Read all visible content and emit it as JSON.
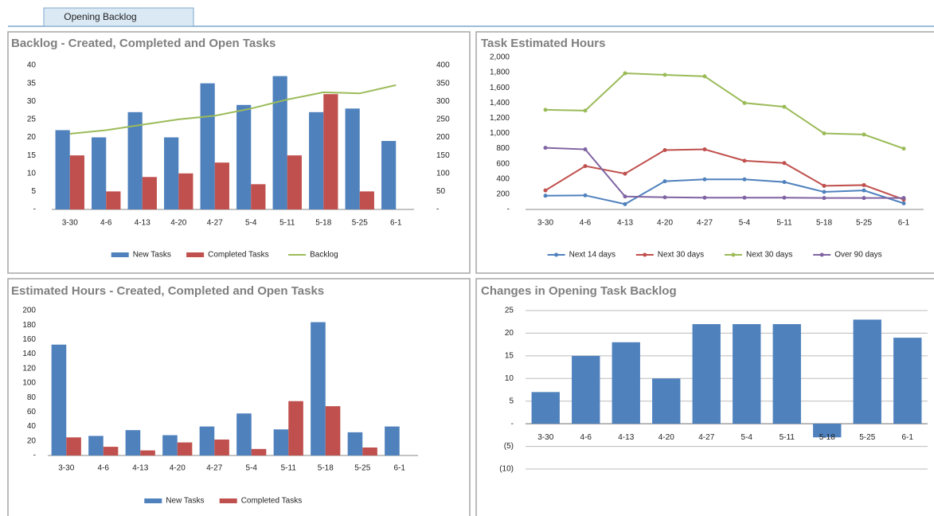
{
  "tab": "Opening Backlog",
  "chart_data": [
    {
      "type": "bar",
      "title": "Backlog - Created, Completed and Open Tasks",
      "categories": [
        "3-30",
        "4-6",
        "4-13",
        "4-20",
        "4-27",
        "5-4",
        "5-11",
        "5-18",
        "5-25",
        "6-1"
      ],
      "series": [
        {
          "name": "New Tasks",
          "color": "#4f81bd",
          "type": "bar",
          "values": [
            22,
            20,
            27,
            20,
            35,
            29,
            37,
            27,
            28,
            19
          ]
        },
        {
          "name": "Completed Tasks",
          "color": "#c0504d",
          "type": "bar",
          "values": [
            15,
            5,
            9,
            10,
            13,
            7,
            15,
            32,
            5,
            0
          ]
        },
        {
          "name": "Backlog",
          "color": "#9bbb59",
          "type": "line",
          "axis": "y2",
          "values": [
            210,
            220,
            235,
            250,
            260,
            280,
            305,
            325,
            322,
            345
          ]
        }
      ],
      "ylim": [
        0,
        40
      ],
      "yticks": [
        {
          "value": 0,
          "label": "-"
        },
        5,
        10,
        15,
        20,
        25,
        30,
        35,
        40
      ],
      "y2lim": [
        0,
        400
      ],
      "y2ticks": [
        {
          "value": 0,
          "label": "-"
        },
        50,
        100,
        150,
        200,
        250,
        300,
        350,
        400
      ],
      "grid": false,
      "legend": "bottom"
    },
    {
      "type": "line",
      "title": "Task Estimated Hours",
      "categories": [
        "3-30",
        "4-6",
        "4-13",
        "4-20",
        "4-27",
        "5-4",
        "5-11",
        "5-18",
        "5-25",
        "6-1"
      ],
      "series": [
        {
          "name": "Next 14 days",
          "color": "#4f81bd",
          "values": [
            180,
            185,
            70,
            370,
            395,
            395,
            360,
            230,
            250,
            80
          ]
        },
        {
          "name": "Next 30 days",
          "color": "#c0504d",
          "values": [
            250,
            570,
            470,
            780,
            790,
            640,
            610,
            310,
            320,
            130
          ]
        },
        {
          "name": "Next 30 days",
          "color": "#9bbb59",
          "values": [
            1310,
            1300,
            1790,
            1770,
            1750,
            1400,
            1350,
            1000,
            985,
            800
          ]
        },
        {
          "name": "Over 90 days",
          "color": "#8064a2",
          "values": [
            810,
            790,
            170,
            160,
            155,
            155,
            155,
            150,
            150,
            150
          ]
        }
      ],
      "ylim": [
        0,
        2000
      ],
      "yticks": [
        {
          "value": 0,
          "label": "-"
        },
        200,
        400,
        600,
        800,
        {
          "value": 1000,
          "label": "1,000"
        },
        {
          "value": 1200,
          "label": "1,200"
        },
        {
          "value": 1400,
          "label": "1,400"
        },
        {
          "value": 1600,
          "label": "1,600"
        },
        {
          "value": 1800,
          "label": "1,800"
        },
        {
          "value": 2000,
          "label": "2,000"
        }
      ],
      "markers": true,
      "grid": false,
      "legend": "bottom"
    },
    {
      "type": "bar",
      "title": "Estimated Hours - Created, Completed and Open Tasks",
      "categories": [
        "3-30",
        "4-6",
        "4-13",
        "4-20",
        "4-27",
        "5-4",
        "5-11",
        "5-18",
        "5-25",
        "6-1"
      ],
      "series": [
        {
          "name": "New Tasks",
          "color": "#4f81bd",
          "values": [
            153,
            27,
            35,
            28,
            40,
            58,
            36,
            184,
            32,
            40
          ]
        },
        {
          "name": "Completed Tasks",
          "color": "#c0504d",
          "values": [
            25,
            12,
            7,
            18,
            22,
            9,
            75,
            68,
            11,
            0
          ]
        }
      ],
      "ylim": [
        0,
        200
      ],
      "yticks": [
        {
          "value": 0,
          "label": "-"
        },
        20,
        40,
        60,
        80,
        100,
        120,
        140,
        160,
        180,
        200
      ],
      "grid": false,
      "legend": "bottom"
    },
    {
      "type": "bar",
      "title": "Changes in Opening Task Backlog",
      "categories": [
        "3-30",
        "4-6",
        "4-13",
        "4-20",
        "4-27",
        "5-4",
        "5-11",
        "5-18",
        "5-25",
        "6-1"
      ],
      "series": [
        {
          "color": "#4f81bd",
          "values": [
            7,
            15,
            18,
            10,
            22,
            22,
            22,
            -3,
            23,
            19
          ]
        }
      ],
      "ylim": [
        -10,
        25
      ],
      "yticks": [
        {
          "value": -10,
          "label": "(10)"
        },
        {
          "value": -5,
          "label": "(5)"
        },
        {
          "value": 0,
          "label": "-"
        },
        5,
        10,
        15,
        20,
        25
      ],
      "grid": true
    }
  ]
}
